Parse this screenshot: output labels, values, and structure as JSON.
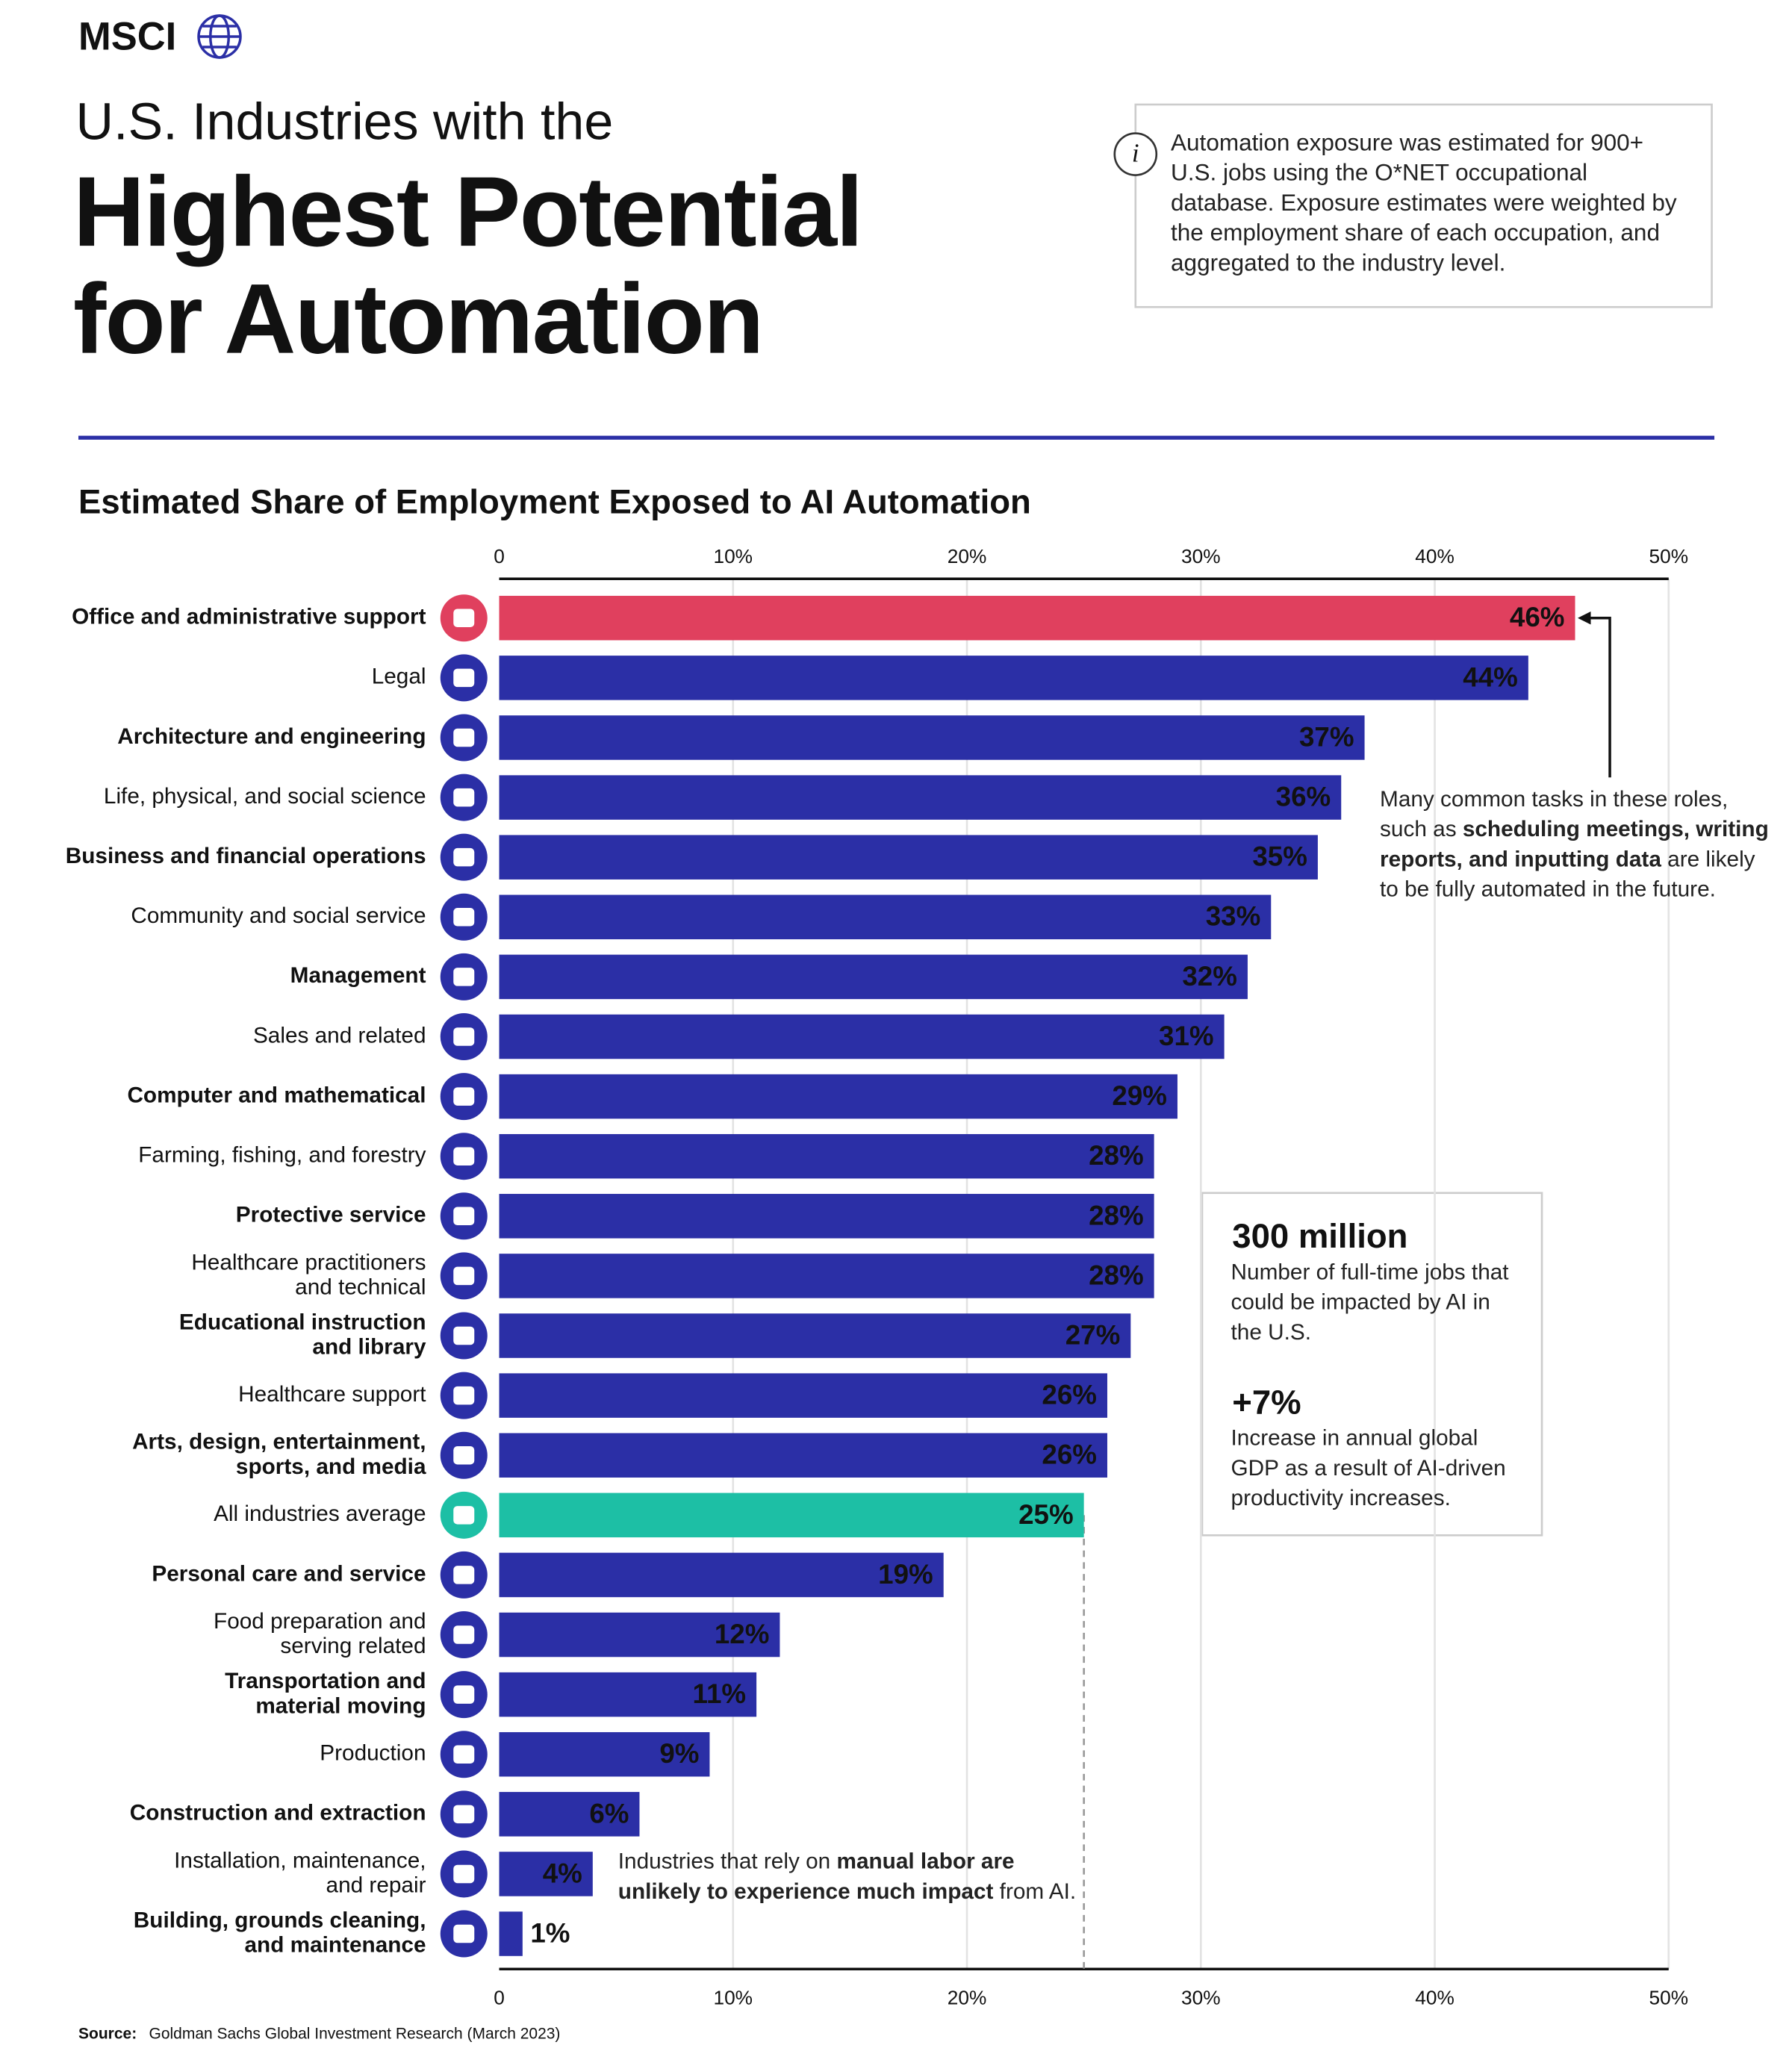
{
  "header": {
    "logo": "MSCI",
    "title_top": "U.S. Industries with the",
    "title_main": [
      "Highest Potential",
      "for Automation"
    ],
    "info": "Automation exposure was estimated for 900+ U.S. jobs using the O*NET occupational database. Exposure estimates were weighted by the employment share of each occupation, and aggregated to the industry level.",
    "info_icon": "i"
  },
  "chart_data": {
    "type": "bar",
    "orientation": "horizontal",
    "title": "Estimated Share of Employment Exposed to AI Automation",
    "categories": [
      "Office and administrative support",
      "Legal",
      "Architecture and engineering",
      "Life, physical, and social science",
      "Business and financial operations",
      "Community and social service",
      "Management",
      "Sales and related",
      "Computer and mathematical",
      "Farming, fishing, and forestry",
      "Protective service",
      "Healthcare practitioners\nand technical",
      "Educational instruction\nand library",
      "Healthcare support",
      "Arts, design, entertainment,\nsports, and media",
      "All industries average",
      "Personal care and service",
      "Food preparation and\nserving related",
      "Transportation and\nmaterial moving",
      "Production",
      "Construction and extraction",
      "Installation, maintenance,\nand repair",
      "Building, grounds cleaning,\nand maintenance"
    ],
    "values": [
      46,
      44,
      37,
      36,
      35,
      33,
      32,
      31,
      29,
      28,
      28,
      28,
      27,
      26,
      26,
      25,
      19,
      12,
      11,
      9,
      6,
      4,
      1
    ],
    "value_labels": [
      "46%",
      "44%",
      "37%",
      "36%",
      "35%",
      "33%",
      "32%",
      "31%",
      "29%",
      "28%",
      "28%",
      "28%",
      "27%",
      "26%",
      "26%",
      "25%",
      "19%",
      "12%",
      "11%",
      "9%",
      "6%",
      "4%",
      "1%"
    ],
    "colors": [
      "#e0405e",
      "#2b2fa6",
      "#2b2fa6",
      "#2b2fa6",
      "#2b2fa6",
      "#2b2fa6",
      "#2b2fa6",
      "#2b2fa6",
      "#2b2fa6",
      "#2b2fa6",
      "#2b2fa6",
      "#2b2fa6",
      "#2b2fa6",
      "#2b2fa6",
      "#2b2fa6",
      "#1dbfa5",
      "#2b2fa6",
      "#2b2fa6",
      "#2b2fa6",
      "#2b2fa6",
      "#2b2fa6",
      "#2b2fa6",
      "#2b2fa6"
    ],
    "xlim": [
      0,
      50
    ],
    "xticks": [
      0,
      {
        "value": 10,
        "label": "10%"
      },
      {
        "value": 20,
        "label": "20%"
      },
      {
        "value": 30,
        "label": "30%"
      },
      {
        "value": 40,
        "label": "40%"
      },
      {
        "value": 50,
        "label": "50%"
      }
    ],
    "grid": true,
    "annotations": [
      {
        "parts": [
          "Many common tasks in these roles, such as ",
          "scheduling meetings, writing reports, and inputting data",
          " are likely to be fully automated in the future."
        ]
      },
      {
        "parts": [
          "Industries that rely on ",
          "manual labor are unlikely to experience much impact",
          " from AI."
        ]
      }
    ]
  },
  "stats": [
    {
      "headline": "300 million",
      "text": "Number of full-time jobs that could be impacted by AI in the U.S."
    },
    {
      "headline": "+7%",
      "text": "Increase in annual global GDP as a result of AI-driven productivity increases."
    }
  ],
  "source": {
    "label": "Source:",
    "text": "Goldman Sachs Global Investment Research (March 2023)"
  }
}
